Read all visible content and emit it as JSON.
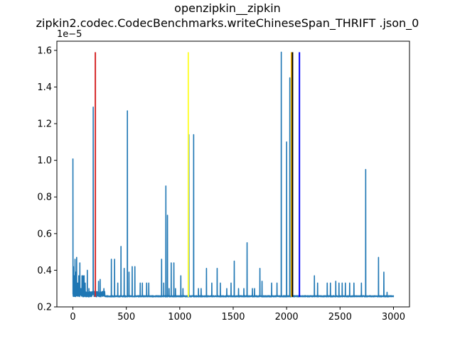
{
  "chart_data": {
    "type": "line",
    "title_line1": "openzipkin__zipkin",
    "title_line2": "zipkin2.codec.CodecBenchmarks.writeChineseSpan_THRIFT .json_0",
    "xlabel": "",
    "ylabel": "",
    "y_offset_label": "1e−5",
    "xlim": [
      -150,
      3150
    ],
    "ylim": [
      0.2,
      1.65
    ],
    "x_ticks": [
      0,
      500,
      1000,
      1500,
      2000,
      2500,
      3000
    ],
    "x_tick_labels": [
      "0",
      "500",
      "1000",
      "1500",
      "2000",
      "2500",
      "3000"
    ],
    "y_ticks": [
      0.2,
      0.4,
      0.6,
      0.8,
      1.0,
      1.2,
      1.4,
      1.6
    ],
    "y_tick_labels": [
      "0.2",
      "0.4",
      "0.6",
      "0.8",
      "1.0",
      "1.2",
      "1.4",
      "1.6"
    ],
    "series_color": "#1f77b4",
    "baseline": 0.255,
    "x_max": 3000,
    "spikes": [
      [
        0,
        1.01
      ],
      [
        5,
        0.42
      ],
      [
        12,
        0.37
      ],
      [
        20,
        0.46
      ],
      [
        28,
        0.39
      ],
      [
        35,
        0.47
      ],
      [
        45,
        0.33
      ],
      [
        55,
        0.37
      ],
      [
        65,
        0.44
      ],
      [
        75,
        0.3
      ],
      [
        85,
        0.37
      ],
      [
        95,
        0.37
      ],
      [
        105,
        0.37
      ],
      [
        115,
        0.33
      ],
      [
        135,
        0.4
      ],
      [
        150,
        0.3
      ],
      [
        190,
        1.29
      ],
      [
        215,
        0.27
      ],
      [
        240,
        0.34
      ],
      [
        255,
        0.35
      ],
      [
        290,
        0.3
      ],
      [
        360,
        0.46
      ],
      [
        390,
        0.46
      ],
      [
        420,
        0.33
      ],
      [
        450,
        0.53
      ],
      [
        480,
        0.41
      ],
      [
        510,
        1.27
      ],
      [
        525,
        0.39
      ],
      [
        555,
        0.42
      ],
      [
        580,
        0.42
      ],
      [
        630,
        0.33
      ],
      [
        650,
        0.33
      ],
      [
        690,
        0.33
      ],
      [
        710,
        0.33
      ],
      [
        830,
        0.46
      ],
      [
        850,
        0.33
      ],
      [
        870,
        0.86
      ],
      [
        885,
        0.7
      ],
      [
        900,
        0.3
      ],
      [
        920,
        0.44
      ],
      [
        945,
        0.44
      ],
      [
        960,
        0.3
      ],
      [
        1010,
        0.37
      ],
      [
        1030,
        0.3
      ],
      [
        1085,
        1.14
      ],
      [
        1130,
        1.14
      ],
      [
        1175,
        0.3
      ],
      [
        1200,
        0.3
      ],
      [
        1250,
        0.41
      ],
      [
        1300,
        0.33
      ],
      [
        1350,
        0.41
      ],
      [
        1380,
        0.33
      ],
      [
        1440,
        0.3
      ],
      [
        1480,
        0.33
      ],
      [
        1510,
        0.45
      ],
      [
        1550,
        0.3
      ],
      [
        1600,
        0.3
      ],
      [
        1630,
        0.55
      ],
      [
        1680,
        0.3
      ],
      [
        1700,
        0.3
      ],
      [
        1750,
        0.41
      ],
      [
        1770,
        0.34
      ],
      [
        1860,
        0.33
      ],
      [
        1910,
        0.33
      ],
      [
        1950,
        1.59
      ],
      [
        2000,
        1.1
      ],
      [
        2030,
        1.45
      ],
      [
        2260,
        0.37
      ],
      [
        2290,
        0.33
      ],
      [
        2380,
        0.33
      ],
      [
        2410,
        0.33
      ],
      [
        2460,
        0.34
      ],
      [
        2490,
        0.33
      ],
      [
        2520,
        0.33
      ],
      [
        2550,
        0.33
      ],
      [
        2590,
        0.33
      ],
      [
        2630,
        0.33
      ],
      [
        2700,
        0.33
      ],
      [
        2740,
        0.95
      ],
      [
        2860,
        0.47
      ],
      [
        2910,
        0.39
      ],
      [
        2940,
        0.28
      ]
    ],
    "vertical_lines": [
      {
        "x": 210,
        "color": "#d62728"
      },
      {
        "x": 1080,
        "color": "#ffff33"
      },
      {
        "x": 2045,
        "color": "#ffbb00"
      },
      {
        "x": 2055,
        "color": "#000000"
      },
      {
        "x": 2120,
        "color": "#0000ff"
      }
    ],
    "vertical_line_top": 1.59,
    "vertical_line_bottom": 0.255,
    "grid": false,
    "legend": "none"
  }
}
